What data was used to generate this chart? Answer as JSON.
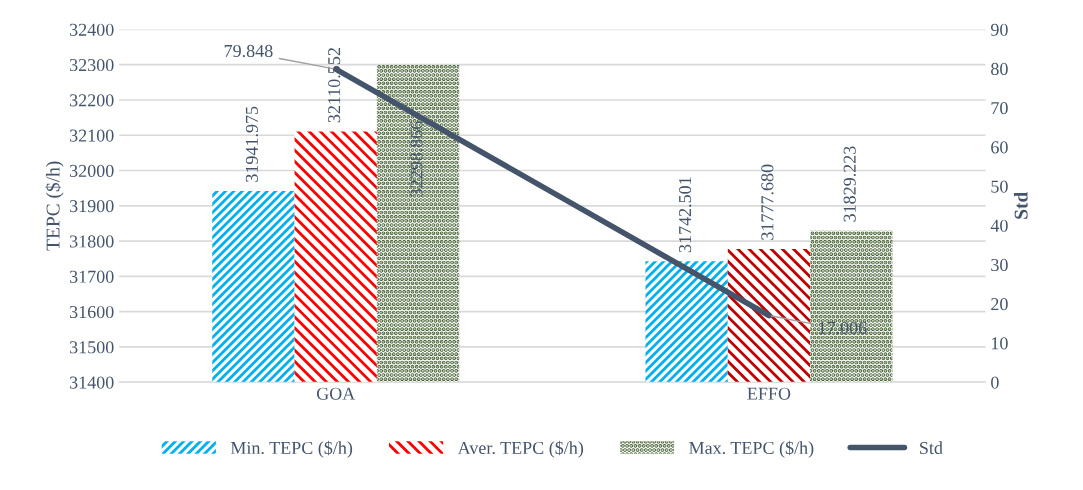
{
  "chart_data": {
    "type": "bar",
    "categories": [
      "GOA",
      "EFFO"
    ],
    "ylabel": "TEPC ($/h)",
    "y2label": "Std",
    "ylim": [
      31400,
      32400
    ],
    "yticks": [
      31400,
      31500,
      31600,
      31700,
      31800,
      31900,
      32000,
      32100,
      32200,
      32300,
      32400
    ],
    "y2lim": [
      0,
      90
    ],
    "y2ticks": [
      0,
      10,
      20,
      30,
      40,
      50,
      60,
      70,
      80,
      90
    ],
    "grid": "y",
    "legend": "bottom",
    "series": [
      {
        "name": "Min. TEPC ($/h)",
        "color": "#00b0f0",
        "values": [
          31941.975,
          31742.501
        ],
        "value_labels": [
          "31941.975",
          "31742.501"
        ]
      },
      {
        "name": "Aver. TEPC ($/h)",
        "color": "#ff0000",
        "colors": [
          "#ff0000",
          "#c00000"
        ],
        "values": [
          32110.552,
          31777.68
        ],
        "value_labels": [
          "32110.552",
          "31777.680"
        ]
      },
      {
        "name": "Max. TEPC ($/h)",
        "color": "#375623",
        "values": [
          32298.866,
          31829.223
        ],
        "value_labels": [
          "32298.866",
          "31829.223"
        ]
      },
      {
        "name": "Std",
        "type": "line",
        "axis": "y2",
        "color": "#44546a",
        "values": [
          79.848,
          17.006
        ],
        "value_labels": [
          "79.848",
          "17.006"
        ]
      }
    ]
  }
}
